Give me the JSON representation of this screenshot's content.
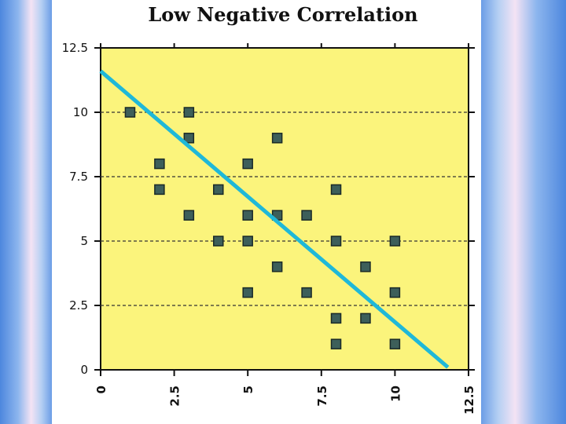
{
  "chart_data": {
    "type": "scatter",
    "title": "Low Negative Correlation",
    "xlabel": "",
    "ylabel": "",
    "xlim": [
      0,
      12.5
    ],
    "ylim": [
      0,
      12.5
    ],
    "x_ticks": [
      "0",
      "2.5",
      "5",
      "7.5",
      "10",
      "12.5"
    ],
    "y_ticks": [
      "0",
      "2.5",
      "5",
      "7.5",
      "10",
      "12.5"
    ],
    "grid": "horizontal dashed",
    "points": [
      {
        "x": 1,
        "y": 10
      },
      {
        "x": 3,
        "y": 10
      },
      {
        "x": 3,
        "y": 9
      },
      {
        "x": 6,
        "y": 9
      },
      {
        "x": 2,
        "y": 8
      },
      {
        "x": 5,
        "y": 8
      },
      {
        "x": 2,
        "y": 7
      },
      {
        "x": 4,
        "y": 7
      },
      {
        "x": 8,
        "y": 7
      },
      {
        "x": 3,
        "y": 6
      },
      {
        "x": 5,
        "y": 6
      },
      {
        "x": 6,
        "y": 6
      },
      {
        "x": 7,
        "y": 6
      },
      {
        "x": 4,
        "y": 5
      },
      {
        "x": 5,
        "y": 5
      },
      {
        "x": 8,
        "y": 5
      },
      {
        "x": 10,
        "y": 5
      },
      {
        "x": 6,
        "y": 4
      },
      {
        "x": 9,
        "y": 4
      },
      {
        "x": 5,
        "y": 3
      },
      {
        "x": 7,
        "y": 3
      },
      {
        "x": 10,
        "y": 3
      },
      {
        "x": 8,
        "y": 2
      },
      {
        "x": 9,
        "y": 2
      },
      {
        "x": 8,
        "y": 1
      },
      {
        "x": 10,
        "y": 1
      }
    ],
    "trend_line": {
      "x": [
        0,
        11.8
      ],
      "y": [
        11.6,
        0.1
      ]
    },
    "colors": {
      "plot_background": "#fbf47c",
      "marker_fill": "#3d5f5a",
      "marker_stroke": "#1a2a28",
      "trend_line": "#1fb8d8",
      "grid": "#333333"
    }
  }
}
